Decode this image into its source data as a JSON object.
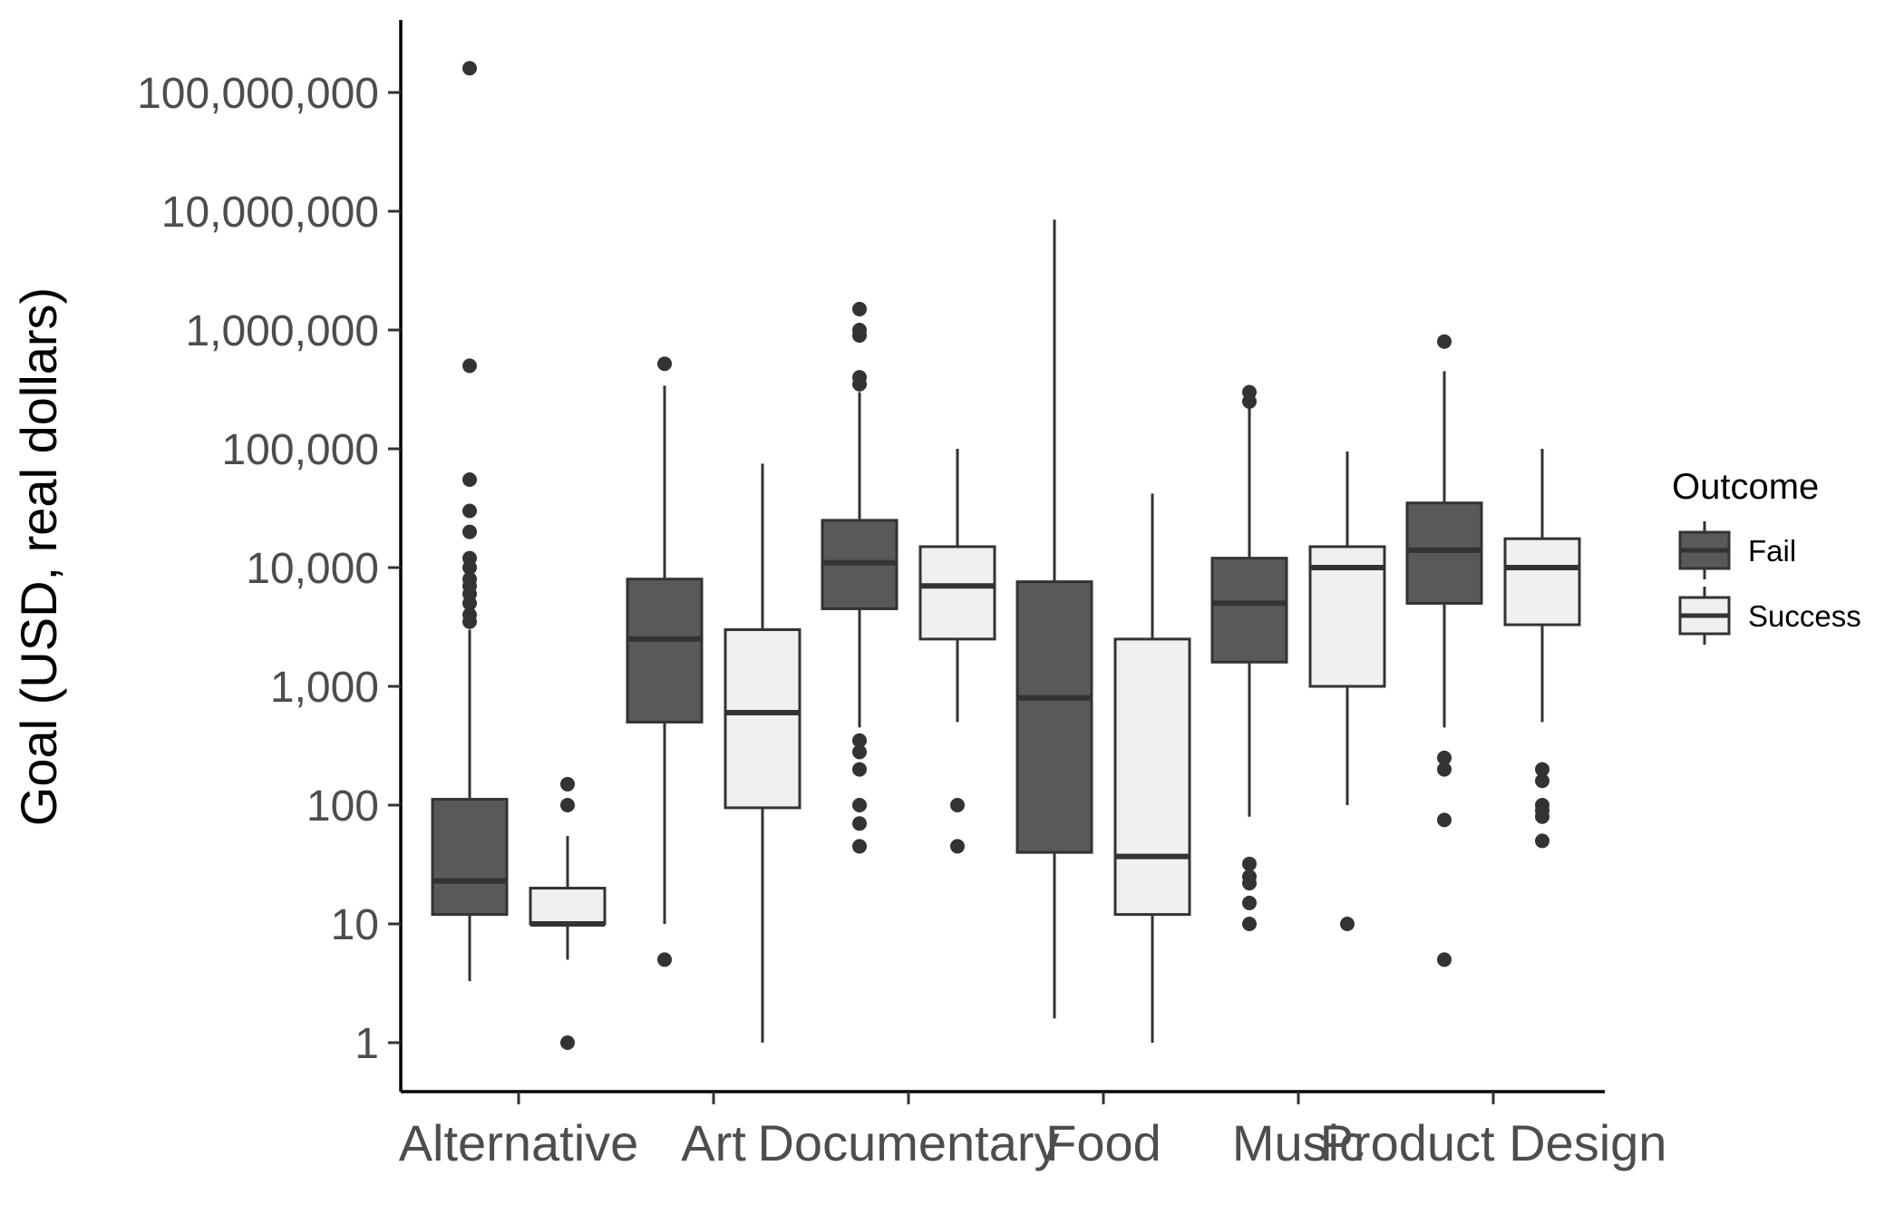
{
  "chart_data": {
    "type": "boxplot",
    "title": "",
    "xlabel": "",
    "ylabel": "Goal (USD, real dollars)",
    "yscale": "log10",
    "ylim": [
      0.6,
      300000000
    ],
    "yticks": [
      1,
      10,
      100,
      1000,
      10000,
      100000,
      1000000,
      10000000,
      100000000
    ],
    "ytick_labels": [
      "1",
      "10",
      "100",
      "1,000",
      "10,000",
      "100,000",
      "1,000,000",
      "10,000,000",
      "100,000,000"
    ],
    "categories": [
      "Alternative",
      "Art",
      "Documentary",
      "Food",
      "Music",
      "Product Design"
    ],
    "grid": false,
    "legend": {
      "title": "Outcome",
      "position": "right",
      "entries": [
        {
          "name": "Fail",
          "color": "#595959"
        },
        {
          "name": "Success",
          "color": "#f0f0f0"
        }
      ]
    },
    "series": [
      {
        "name": "Fail",
        "color": "#595959",
        "boxes": [
          {
            "category": "Alternative",
            "whisker_low": 3.3,
            "q1": 12,
            "median": 23,
            "q3": 112,
            "whisker_high": 3000,
            "outliers": [
              160000000,
              500000,
              55000,
              30000,
              20000,
              12000,
              10000,
              8000,
              7000,
              6000,
              5000,
              4000,
              3500
            ]
          },
          {
            "category": "Art",
            "whisker_low": 10,
            "q1": 500,
            "median": 2500,
            "q3": 8000,
            "whisker_high": 340000,
            "outliers": [
              520000,
              5
            ]
          },
          {
            "category": "Documentary",
            "whisker_low": 450,
            "q1": 4500,
            "median": 11000,
            "q3": 25000,
            "whisker_high": 300000,
            "outliers": [
              1500000,
              1000000,
              900000,
              400000,
              350000,
              350,
              280,
              200,
              100,
              70,
              45
            ]
          },
          {
            "category": "Food",
            "whisker_low": 1.6,
            "q1": 40,
            "median": 800,
            "q3": 7600,
            "whisker_high": 8500000,
            "outliers": []
          },
          {
            "category": "Music",
            "whisker_low": 80,
            "q1": 1600,
            "median": 5000,
            "q3": 12000,
            "whisker_high": 220000,
            "outliers": [
              300000,
              250000,
              32,
              25,
              22,
              15,
              10
            ]
          },
          {
            "category": "Product Design",
            "whisker_low": 450,
            "q1": 5000,
            "median": 14000,
            "q3": 35000,
            "whisker_high": 450000,
            "outliers": [
              800000,
              250,
              200,
              75,
              5
            ]
          }
        ]
      },
      {
        "name": "Success",
        "color": "#f0f0f0",
        "boxes": [
          {
            "category": "Alternative",
            "whisker_low": 5,
            "q1": 10,
            "median": 10,
            "q3": 20,
            "whisker_high": 55,
            "outliers": [
              150,
              100,
              1
            ]
          },
          {
            "category": "Art",
            "whisker_low": 1,
            "q1": 95,
            "median": 600,
            "q3": 3000,
            "whisker_high": 75000,
            "outliers": []
          },
          {
            "category": "Documentary",
            "whisker_low": 500,
            "q1": 2500,
            "median": 7000,
            "q3": 15000,
            "whisker_high": 100000,
            "outliers": [
              100,
              45
            ]
          },
          {
            "category": "Food",
            "whisker_low": 1,
            "q1": 12,
            "median": 37,
            "q3": 2500,
            "whisker_high": 42000,
            "outliers": []
          },
          {
            "category": "Music",
            "whisker_low": 100,
            "q1": 1000,
            "median": 10000,
            "q3": 15000,
            "whisker_high": 95000,
            "outliers": [
              10
            ]
          },
          {
            "category": "Product Design",
            "whisker_low": 500,
            "q1": 3300,
            "median": 10000,
            "q3": 17500,
            "whisker_high": 100000,
            "outliers": [
              200,
              160,
              100,
              90,
              80,
              50
            ]
          }
        ]
      }
    ]
  }
}
